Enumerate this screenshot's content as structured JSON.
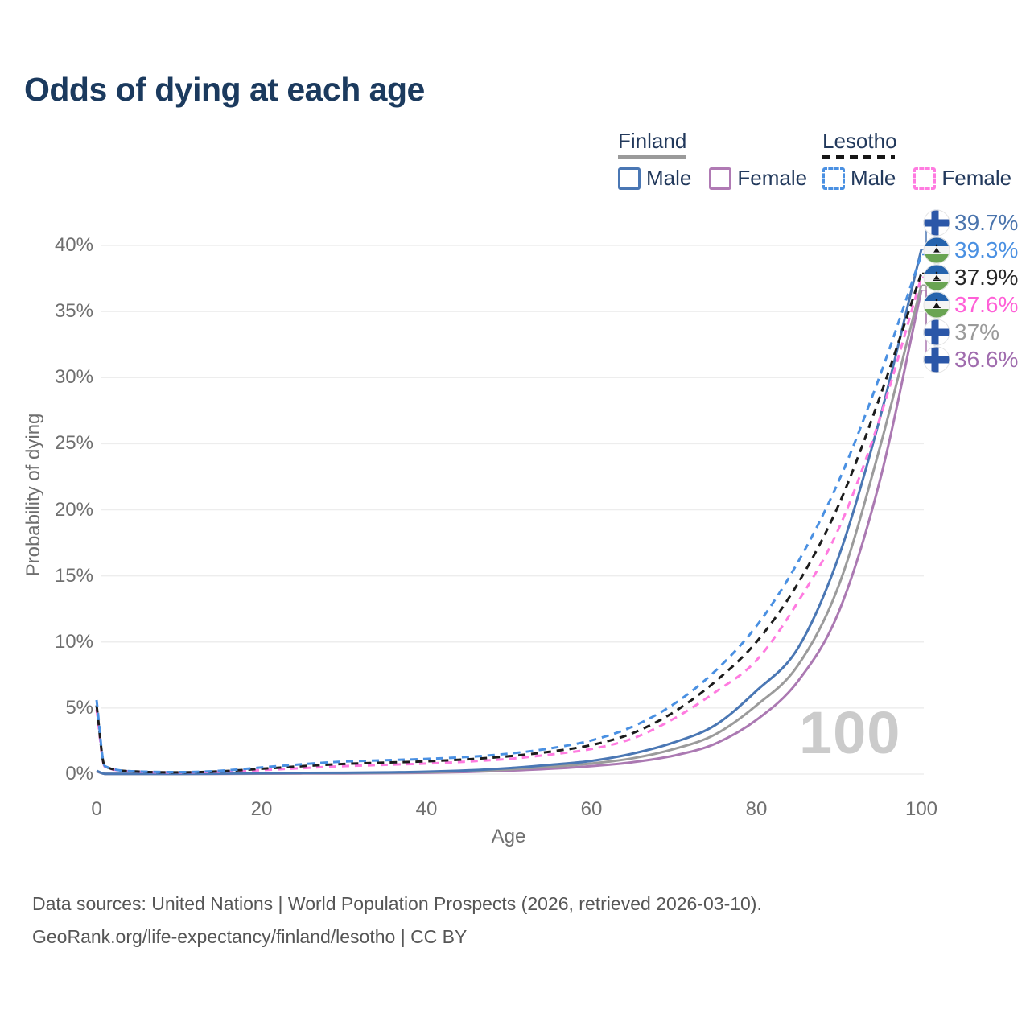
{
  "title": "Odds of dying at each age",
  "legend": {
    "groups": [
      {
        "id": "finland",
        "label": "Finland",
        "line_style": "solid",
        "line_color": "#9a9a9a",
        "items": [
          {
            "id": "finland-male",
            "label": "Male",
            "color": "#4a77b4",
            "dashed": false
          },
          {
            "id": "finland-female",
            "label": "Female",
            "color": "#b07ab4",
            "dashed": false
          }
        ]
      },
      {
        "id": "lesotho",
        "label": "Lesotho",
        "line_style": "dashed",
        "line_color": "#161616",
        "items": [
          {
            "id": "lesotho-male",
            "label": "Male",
            "color": "#4a90e2",
            "dashed": true
          },
          {
            "id": "lesotho-female",
            "label": "Female",
            "color": "#ff7be0",
            "dashed": true
          }
        ]
      }
    ]
  },
  "chart_data": {
    "type": "line",
    "title": "Odds of dying at each age",
    "xlabel": "Age",
    "ylabel": "Probability of dying",
    "xlim": [
      0,
      100
    ],
    "ylim": [
      0,
      40
    ],
    "grid": "horizontal",
    "legend_position": "top-right",
    "xticks": [
      0,
      20,
      40,
      60,
      80,
      100
    ],
    "xtick_labels": [
      "0",
      "20",
      "40",
      "60",
      "80",
      "100"
    ],
    "yticks": [
      0,
      5,
      10,
      15,
      20,
      25,
      30,
      35,
      40
    ],
    "ytick_labels": [
      "0%",
      "5%",
      "10%",
      "15%",
      "20%",
      "25%",
      "30%",
      "35%",
      "40%"
    ],
    "x": [
      0,
      1,
      5,
      10,
      15,
      20,
      25,
      30,
      35,
      40,
      45,
      50,
      55,
      60,
      65,
      70,
      75,
      80,
      85,
      90,
      95,
      100
    ],
    "series": [
      {
        "id": "finland-female",
        "name": "Finland Female",
        "country": "Finland",
        "sex": "female",
        "color": "#ab79b2",
        "dash": false,
        "flag": "finland",
        "end_label": {
          "text": "36.6%",
          "color": "#a06cae"
        },
        "values": [
          0.2,
          0.02,
          0.01,
          0.01,
          0.02,
          0.03,
          0.04,
          0.05,
          0.07,
          0.1,
          0.16,
          0.26,
          0.4,
          0.6,
          0.9,
          1.4,
          2.3,
          4.1,
          7.0,
          12.3,
          22.3,
          36.6
        ]
      },
      {
        "id": "finland-both",
        "name": "Finland Both sexes",
        "country": "Finland",
        "sex": "both",
        "color": "#9b9b9b",
        "dash": false,
        "flag": "finland",
        "end_label": {
          "text": "37%",
          "color": "#9a9a9a"
        },
        "values": [
          0.22,
          0.02,
          0.01,
          0.01,
          0.03,
          0.05,
          0.07,
          0.08,
          0.1,
          0.14,
          0.22,
          0.35,
          0.55,
          0.8,
          1.2,
          1.9,
          3.0,
          5.2,
          8.2,
          14.3,
          24.8,
          37.0
        ]
      },
      {
        "id": "finland-male",
        "name": "Finland Male",
        "country": "Finland",
        "sex": "male",
        "color": "#4a77b4",
        "dash": false,
        "flag": "finland",
        "end_label": {
          "text": "39.7%",
          "color": "#4a74ad"
        },
        "values": [
          0.25,
          0.02,
          0.01,
          0.01,
          0.03,
          0.07,
          0.09,
          0.1,
          0.13,
          0.18,
          0.28,
          0.45,
          0.7,
          1.0,
          1.55,
          2.4,
          3.7,
          6.3,
          9.5,
          16.5,
          27.0,
          39.7
        ]
      },
      {
        "id": "lesotho-female",
        "name": "Lesotho Female",
        "country": "Lesotho",
        "sex": "female",
        "color": "#ff7be0",
        "dash": true,
        "flag": "lesotho",
        "end_label": {
          "text": "37.6%",
          "color": "#ff5fd7"
        },
        "values": [
          4.9,
          0.55,
          0.18,
          0.12,
          0.18,
          0.3,
          0.45,
          0.6,
          0.7,
          0.8,
          0.95,
          1.15,
          1.48,
          1.9,
          2.7,
          4.2,
          6.2,
          8.6,
          13.0,
          18.6,
          27.0,
          37.6
        ]
      },
      {
        "id": "lesotho-both",
        "name": "Lesotho Both sexes",
        "country": "Lesotho",
        "sex": "both",
        "color": "#1c1c1c",
        "dash": true,
        "flag": "lesotho",
        "end_label": {
          "text": "37.9%",
          "color": "#262626"
        },
        "values": [
          5.2,
          0.58,
          0.19,
          0.13,
          0.21,
          0.4,
          0.6,
          0.77,
          0.87,
          0.97,
          1.12,
          1.35,
          1.7,
          2.2,
          3.1,
          4.7,
          7.0,
          10.0,
          14.4,
          20.4,
          28.6,
          37.9
        ]
      },
      {
        "id": "lesotho-male",
        "name": "Lesotho Male",
        "country": "Lesotho",
        "sex": "male",
        "color": "#4a90e2",
        "dash": true,
        "flag": "lesotho",
        "end_label": {
          "text": "39.3%",
          "color": "#4a90e2"
        },
        "values": [
          5.6,
          0.6,
          0.2,
          0.15,
          0.25,
          0.5,
          0.75,
          0.95,
          1.05,
          1.15,
          1.3,
          1.55,
          1.95,
          2.55,
          3.6,
          5.3,
          7.8,
          11.2,
          16.0,
          22.2,
          30.2,
          39.3
        ]
      }
    ]
  },
  "watermark": "100",
  "footer": {
    "line1": "Data sources: United Nations | World Population Prospects (2026, retrieved 2026-03-10).",
    "line2": "GeoRank.org/life-expectancy/finland/lesotho | CC BY"
  }
}
